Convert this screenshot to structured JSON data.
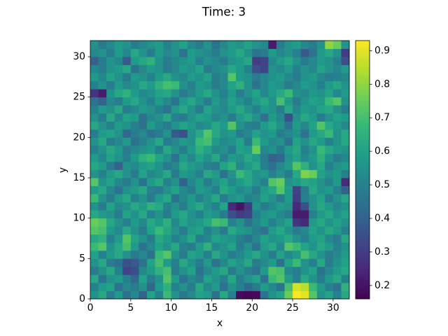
{
  "chart_data": {
    "type": "heatmap",
    "title": "Time: 3",
    "x_label": "x",
    "y_label": "y",
    "xlim": [
      0,
      32
    ],
    "ylim": [
      0,
      32
    ],
    "xticks": [
      0,
      5,
      10,
      15,
      20,
      25,
      30
    ],
    "yticks": [
      0,
      5,
      10,
      15,
      20,
      25,
      30
    ],
    "colormap": "viridis",
    "clim": [
      0.16,
      0.93
    ],
    "cticks": [
      0.2,
      0.3,
      0.4,
      0.5,
      0.6,
      0.7,
      0.8,
      0.9
    ],
    "z": [
      [
        0.55,
        0.62,
        0.48,
        0.58,
        0.45,
        0.52,
        0.4,
        0.6,
        0.5,
        0.68,
        0.55,
        0.47,
        0.52,
        0.6,
        0.58,
        0.45,
        0.62,
        0.5,
        0.18,
        0.17,
        0.18,
        0.45,
        0.55,
        0.6,
        0.75,
        0.92,
        0.9,
        0.72,
        0.55,
        0.6,
        0.5,
        0.62
      ],
      [
        0.5,
        0.58,
        0.6,
        0.45,
        0.52,
        0.48,
        0.55,
        0.42,
        0.58,
        0.65,
        0.5,
        0.55,
        0.48,
        0.62,
        0.52,
        0.58,
        0.45,
        0.55,
        0.5,
        0.42,
        0.48,
        0.58,
        0.52,
        0.45,
        0.7,
        0.88,
        0.85,
        0.68,
        0.58,
        0.5,
        0.45,
        0.65
      ],
      [
        0.62,
        0.45,
        0.55,
        0.58,
        0.5,
        0.42,
        0.6,
        0.48,
        0.55,
        0.72,
        0.58,
        0.45,
        0.52,
        0.48,
        0.6,
        0.55,
        0.5,
        0.62,
        0.48,
        0.55,
        0.6,
        0.45,
        0.68,
        0.72,
        0.58,
        0.5,
        0.62,
        0.55,
        0.48,
        0.58,
        0.62,
        0.5
      ],
      [
        0.48,
        0.55,
        0.62,
        0.5,
        0.32,
        0.35,
        0.52,
        0.58,
        0.65,
        0.7,
        0.48,
        0.55,
        0.6,
        0.45,
        0.52,
        0.58,
        0.62,
        0.48,
        0.55,
        0.5,
        0.45,
        0.58,
        0.72,
        0.7,
        0.52,
        0.48,
        0.55,
        0.6,
        0.45,
        0.52,
        0.58,
        0.62
      ],
      [
        0.55,
        0.62,
        0.48,
        0.45,
        0.35,
        0.38,
        0.45,
        0.6,
        0.7,
        0.58,
        0.5,
        0.62,
        0.55,
        0.48,
        0.58,
        0.45,
        0.52,
        0.6,
        0.55,
        0.62,
        0.48,
        0.52,
        0.58,
        0.45,
        0.6,
        0.68,
        0.55,
        0.5,
        0.62,
        0.48,
        0.55,
        0.6
      ],
      [
        0.6,
        0.5,
        0.58,
        0.62,
        0.55,
        0.48,
        0.52,
        0.45,
        0.68,
        0.72,
        0.55,
        0.48,
        0.6,
        0.58,
        0.5,
        0.62,
        0.55,
        0.48,
        0.52,
        0.58,
        0.62,
        0.55,
        0.48,
        0.6,
        0.52,
        0.58,
        0.7,
        0.62,
        0.55,
        0.48,
        0.52,
        0.58
      ],
      [
        0.68,
        0.72,
        0.55,
        0.62,
        0.7,
        0.58,
        0.45,
        0.52,
        0.6,
        0.55,
        0.62,
        0.5,
        0.48,
        0.58,
        0.65,
        0.52,
        0.55,
        0.6,
        0.48,
        0.55,
        0.45,
        0.58,
        0.62,
        0.52,
        0.72,
        0.68,
        0.6,
        0.55,
        0.62,
        0.58,
        0.5,
        0.55
      ],
      [
        0.62,
        0.65,
        0.5,
        0.58,
        0.72,
        0.6,
        0.55,
        0.48,
        0.62,
        0.58,
        0.5,
        0.55,
        0.62,
        0.48,
        0.52,
        0.6,
        0.58,
        0.55,
        0.5,
        0.45,
        0.52,
        0.6,
        0.55,
        0.58,
        0.62,
        0.55,
        0.5,
        0.58,
        0.6,
        0.52,
        0.48,
        0.62
      ],
      [
        0.72,
        0.7,
        0.58,
        0.52,
        0.62,
        0.55,
        0.48,
        0.6,
        0.68,
        0.62,
        0.55,
        0.48,
        0.58,
        0.6,
        0.5,
        0.55,
        0.48,
        0.62,
        0.58,
        0.55,
        0.5,
        0.45,
        0.58,
        0.62,
        0.55,
        0.48,
        0.52,
        0.6,
        0.55,
        0.62,
        0.58,
        0.5
      ],
      [
        0.75,
        0.72,
        0.62,
        0.55,
        0.5,
        0.58,
        0.52,
        0.62,
        0.58,
        0.65,
        0.52,
        0.6,
        0.55,
        0.58,
        0.62,
        0.7,
        0.68,
        0.5,
        0.55,
        0.45,
        0.52,
        0.58,
        0.5,
        0.55,
        0.6,
        0.28,
        0.25,
        0.58,
        0.62,
        0.55,
        0.6,
        0.55
      ],
      [
        0.62,
        0.58,
        0.55,
        0.48,
        0.6,
        0.55,
        0.62,
        0.5,
        0.55,
        0.48,
        0.58,
        0.62,
        0.55,
        0.5,
        0.58,
        0.55,
        0.48,
        0.35,
        0.3,
        0.32,
        0.5,
        0.55,
        0.58,
        0.52,
        0.48,
        0.22,
        0.22,
        0.5,
        0.58,
        0.62,
        0.55,
        0.6
      ],
      [
        0.55,
        0.48,
        0.6,
        0.52,
        0.55,
        0.62,
        0.58,
        0.65,
        0.62,
        0.5,
        0.55,
        0.48,
        0.58,
        0.62,
        0.55,
        0.5,
        0.6,
        0.25,
        0.2,
        0.3,
        0.55,
        0.48,
        0.52,
        0.58,
        0.55,
        0.25,
        0.35,
        0.55,
        0.62,
        0.58,
        0.52,
        0.55
      ],
      [
        0.68,
        0.55,
        0.48,
        0.58,
        0.62,
        0.5,
        0.55,
        0.48,
        0.58,
        0.62,
        0.45,
        0.52,
        0.58,
        0.5,
        0.55,
        0.62,
        0.48,
        0.55,
        0.58,
        0.5,
        0.52,
        0.6,
        0.55,
        0.48,
        0.58,
        0.3,
        0.5,
        0.55,
        0.6,
        0.48,
        0.55,
        0.62
      ],
      [
        0.58,
        0.62,
        0.52,
        0.45,
        0.55,
        0.58,
        0.62,
        0.5,
        0.48,
        0.55,
        0.6,
        0.52,
        0.48,
        0.58,
        0.55,
        0.5,
        0.62,
        0.58,
        0.52,
        0.55,
        0.48,
        0.58,
        0.62,
        0.72,
        0.58,
        0.32,
        0.48,
        0.62,
        0.55,
        0.58,
        0.5,
        0.4
      ],
      [
        0.72,
        0.55,
        0.6,
        0.52,
        0.48,
        0.55,
        0.45,
        0.58,
        0.62,
        0.5,
        0.55,
        0.4,
        0.52,
        0.58,
        0.48,
        0.55,
        0.6,
        0.52,
        0.58,
        0.62,
        0.55,
        0.5,
        0.72,
        0.75,
        0.55,
        0.58,
        0.62,
        0.6,
        0.55,
        0.5,
        0.58,
        0.25
      ],
      [
        0.55,
        0.5,
        0.58,
        0.62,
        0.55,
        0.48,
        0.6,
        0.52,
        0.55,
        0.62,
        0.48,
        0.58,
        0.55,
        0.5,
        0.62,
        0.58,
        0.45,
        0.55,
        0.68,
        0.62,
        0.55,
        0.58,
        0.5,
        0.55,
        0.48,
        0.62,
        0.78,
        0.75,
        0.6,
        0.55,
        0.58,
        0.5
      ],
      [
        0.62,
        0.58,
        0.48,
        0.4,
        0.55,
        0.52,
        0.58,
        0.6,
        0.55,
        0.48,
        0.52,
        0.62,
        0.58,
        0.55,
        0.5,
        0.48,
        0.6,
        0.65,
        0.52,
        0.58,
        0.62,
        0.5,
        0.45,
        0.52,
        0.58,
        0.72,
        0.65,
        0.55,
        0.62,
        0.5,
        0.55,
        0.58
      ],
      [
        0.58,
        0.52,
        0.6,
        0.55,
        0.5,
        0.58,
        0.65,
        0.68,
        0.6,
        0.55,
        0.45,
        0.58,
        0.52,
        0.6,
        0.55,
        0.62,
        0.5,
        0.58,
        0.55,
        0.62,
        0.58,
        0.48,
        0.4,
        0.42,
        0.55,
        0.6,
        0.52,
        0.58,
        0.65,
        0.55,
        0.48,
        0.52
      ],
      [
        0.5,
        0.55,
        0.62,
        0.58,
        0.48,
        0.52,
        0.55,
        0.58,
        0.5,
        0.62,
        0.55,
        0.48,
        0.58,
        0.65,
        0.6,
        0.52,
        0.55,
        0.48,
        0.6,
        0.58,
        0.75,
        0.52,
        0.55,
        0.48,
        0.58,
        0.62,
        0.5,
        0.55,
        0.68,
        0.62,
        0.58,
        0.55
      ],
      [
        0.55,
        0.62,
        0.48,
        0.52,
        0.58,
        0.45,
        0.5,
        0.55,
        0.62,
        0.48,
        0.52,
        0.58,
        0.55,
        0.68,
        0.7,
        0.58,
        0.52,
        0.55,
        0.6,
        0.48,
        0.68,
        0.58,
        0.52,
        0.55,
        0.45,
        0.6,
        0.55,
        0.62,
        0.58,
        0.5,
        0.55,
        0.62
      ],
      [
        0.48,
        0.58,
        0.6,
        0.55,
        0.42,
        0.48,
        0.52,
        0.45,
        0.48,
        0.55,
        0.38,
        0.35,
        0.55,
        0.62,
        0.72,
        0.62,
        0.55,
        0.58,
        0.48,
        0.52,
        0.6,
        0.55,
        0.58,
        0.48,
        0.52,
        0.55,
        0.45,
        0.58,
        0.62,
        0.68,
        0.55,
        0.62
      ],
      [
        0.62,
        0.55,
        0.5,
        0.58,
        0.55,
        0.5,
        0.45,
        0.58,
        0.52,
        0.48,
        0.55,
        0.6,
        0.58,
        0.52,
        0.55,
        0.62,
        0.58,
        0.72,
        0.55,
        0.5,
        0.48,
        0.58,
        0.62,
        0.55,
        0.45,
        0.58,
        0.52,
        0.6,
        0.72,
        0.62,
        0.58,
        0.52
      ],
      [
        0.55,
        0.48,
        0.62,
        0.52,
        0.6,
        0.58,
        0.45,
        0.52,
        0.55,
        0.62,
        0.5,
        0.48,
        0.55,
        0.6,
        0.58,
        0.52,
        0.55,
        0.48,
        0.58,
        0.62,
        0.55,
        0.45,
        0.58,
        0.52,
        0.35,
        0.55,
        0.62,
        0.58,
        0.48,
        0.55,
        0.6,
        0.58
      ],
      [
        0.5,
        0.58,
        0.55,
        0.62,
        0.48,
        0.52,
        0.58,
        0.55,
        0.5,
        0.45,
        0.58,
        0.62,
        0.55,
        0.48,
        0.6,
        0.55,
        0.52,
        0.58,
        0.62,
        0.55,
        0.5,
        0.58,
        0.55,
        0.48,
        0.62,
        0.52,
        0.58,
        0.55,
        0.6,
        0.62,
        0.55,
        0.48
      ],
      [
        0.45,
        0.4,
        0.52,
        0.48,
        0.58,
        0.62,
        0.55,
        0.5,
        0.58,
        0.52,
        0.45,
        0.58,
        0.62,
        0.55,
        0.48,
        0.58,
        0.52,
        0.6,
        0.55,
        0.5,
        0.58,
        0.62,
        0.55,
        0.7,
        0.58,
        0.48,
        0.55,
        0.6,
        0.58,
        0.68,
        0.72,
        0.55
      ],
      [
        0.28,
        0.22,
        0.55,
        0.62,
        0.65,
        0.58,
        0.52,
        0.55,
        0.6,
        0.62,
        0.55,
        0.48,
        0.52,
        0.58,
        0.62,
        0.55,
        0.5,
        0.58,
        0.48,
        0.55,
        0.6,
        0.52,
        0.58,
        0.62,
        0.68,
        0.55,
        0.52,
        0.58,
        0.55,
        0.6,
        0.52,
        0.58
      ],
      [
        0.5,
        0.55,
        0.48,
        0.58,
        0.52,
        0.55,
        0.62,
        0.58,
        0.65,
        0.7,
        0.68,
        0.55,
        0.5,
        0.58,
        0.55,
        0.48,
        0.52,
        0.6,
        0.65,
        0.55,
        0.45,
        0.52,
        0.58,
        0.55,
        0.48,
        0.52,
        0.58,
        0.55,
        0.5,
        0.58,
        0.62,
        0.55
      ],
      [
        0.58,
        0.52,
        0.6,
        0.55,
        0.48,
        0.58,
        0.55,
        0.5,
        0.58,
        0.62,
        0.55,
        0.52,
        0.58,
        0.55,
        0.6,
        0.48,
        0.52,
        0.72,
        0.58,
        0.55,
        0.48,
        0.52,
        0.55,
        0.58,
        0.52,
        0.48,
        0.55,
        0.58,
        0.52,
        0.48,
        0.5,
        0.52
      ],
      [
        0.52,
        0.48,
        0.55,
        0.58,
        0.62,
        0.45,
        0.52,
        0.58,
        0.55,
        0.48,
        0.52,
        0.58,
        0.55,
        0.6,
        0.48,
        0.52,
        0.55,
        0.62,
        0.58,
        0.5,
        0.35,
        0.32,
        0.55,
        0.52,
        0.58,
        0.5,
        0.55,
        0.52,
        0.6,
        0.55,
        0.52,
        0.58
      ],
      [
        0.4,
        0.48,
        0.55,
        0.52,
        0.38,
        0.58,
        0.62,
        0.65,
        0.55,
        0.48,
        0.52,
        0.55,
        0.58,
        0.5,
        0.55,
        0.52,
        0.48,
        0.55,
        0.58,
        0.62,
        0.3,
        0.32,
        0.52,
        0.58,
        0.62,
        0.55,
        0.48,
        0.52,
        0.58,
        0.55,
        0.5,
        0.35
      ],
      [
        0.52,
        0.55,
        0.48,
        0.58,
        0.52,
        0.62,
        0.55,
        0.48,
        0.58,
        0.52,
        0.55,
        0.45,
        0.58,
        0.55,
        0.52,
        0.48,
        0.55,
        0.58,
        0.62,
        0.55,
        0.45,
        0.48,
        0.58,
        0.52,
        0.55,
        0.5,
        0.38,
        0.45,
        0.58,
        0.62,
        0.55,
        0.3
      ],
      [
        0.55,
        0.48,
        0.52,
        0.58,
        0.55,
        0.48,
        0.52,
        0.55,
        0.58,
        0.5,
        0.55,
        0.6,
        0.52,
        0.48,
        0.55,
        0.45,
        0.52,
        0.58,
        0.55,
        0.6,
        0.55,
        0.52,
        0.22,
        0.48,
        0.55,
        0.58,
        0.52,
        0.48,
        0.55,
        0.8,
        0.75,
        0.55
      ]
    ]
  }
}
